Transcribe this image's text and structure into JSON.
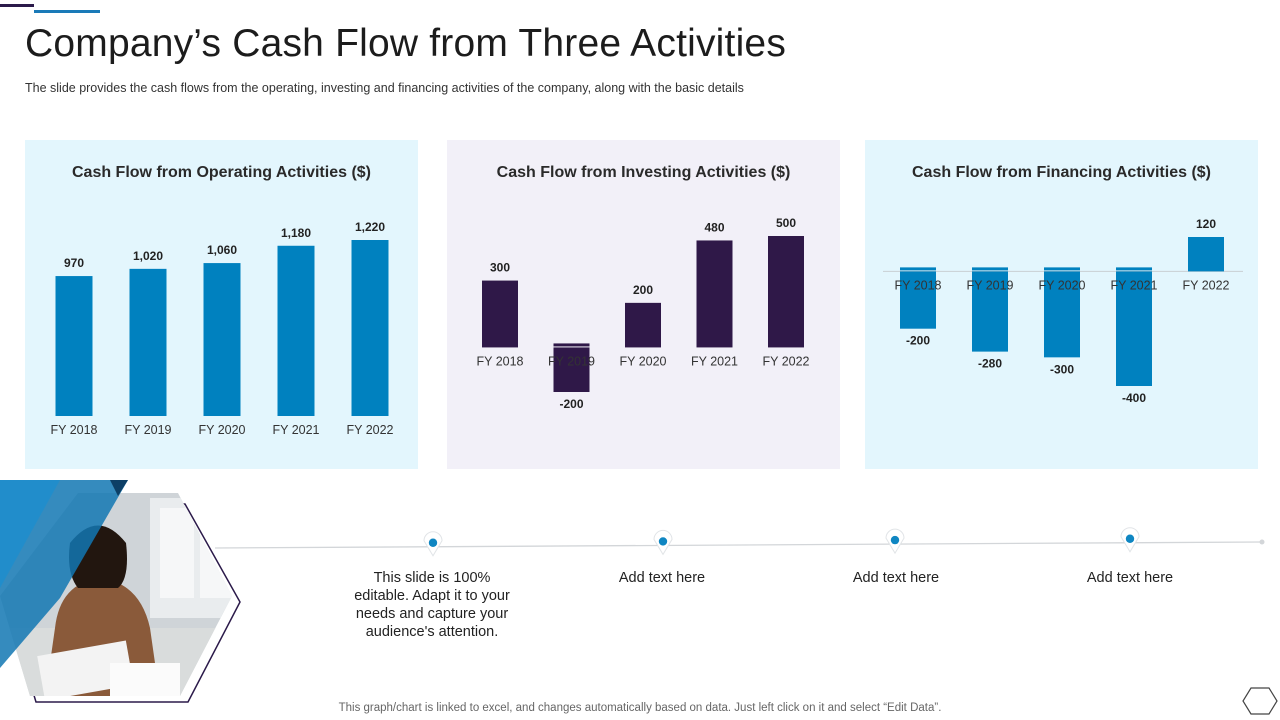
{
  "slide": {
    "title": "Company’s Cash Flow from Three Activities",
    "subtitle": "The slide provides  the cash flows from the operating,  investing  and financing  activities of the company,  along with the basic details",
    "footer": "This graph/chart is linked to excel,  and changes automatically based on data. Just left click on it and select “Edit Data”."
  },
  "timeline": {
    "items": [
      {
        "text": "This slide is 100% editable. Adapt it to your needs and capture your audience's attention."
      },
      {
        "text": "Add text here"
      },
      {
        "text": "Add text here"
      },
      {
        "text": "Add text here"
      }
    ]
  },
  "colors": {
    "blue": "#0081bf",
    "purple": "#2f1848",
    "panel_blue": "#e3f6fd",
    "panel_purple": "#f2f0f8",
    "marker": "#0f86c2"
  },
  "chart_data": [
    {
      "type": "bar",
      "title": "Cash Flow from Operating Activities ($)",
      "categories": [
        "FY 2018",
        "FY 2019",
        "FY 2020",
        "FY 2021",
        "FY 2022"
      ],
      "values": [
        970,
        1020,
        1060,
        1180,
        1220
      ],
      "data_labels": [
        "970",
        "1,020",
        "1,060",
        "1,180",
        "1,220"
      ],
      "ylim": [
        0,
        1220
      ],
      "color": "#0081bf",
      "grid": false
    },
    {
      "type": "bar",
      "title": "Cash Flow from Investing Activities ($)",
      "categories": [
        "FY 2018",
        "FY 2019",
        "FY 2020",
        "FY 2021",
        "FY 2022"
      ],
      "values": [
        300,
        -200,
        200,
        480,
        500
      ],
      "data_labels": [
        "300",
        "-200",
        "200",
        "480",
        "500"
      ],
      "ylim": [
        -200,
        500
      ],
      "color": "#2f1848",
      "grid": false
    },
    {
      "type": "bar",
      "title": "Cash Flow from Financing Activities ($)",
      "categories": [
        "FY 2018",
        "FY 2019",
        "FY 2020",
        "FY 2021",
        "FY 2022"
      ],
      "values": [
        -200,
        -280,
        -300,
        -400,
        120
      ],
      "data_labels": [
        "-200",
        "-280",
        "-300",
        "-400",
        "120"
      ],
      "ylim": [
        -400,
        120
      ],
      "color": "#0081bf",
      "grid": false
    }
  ]
}
